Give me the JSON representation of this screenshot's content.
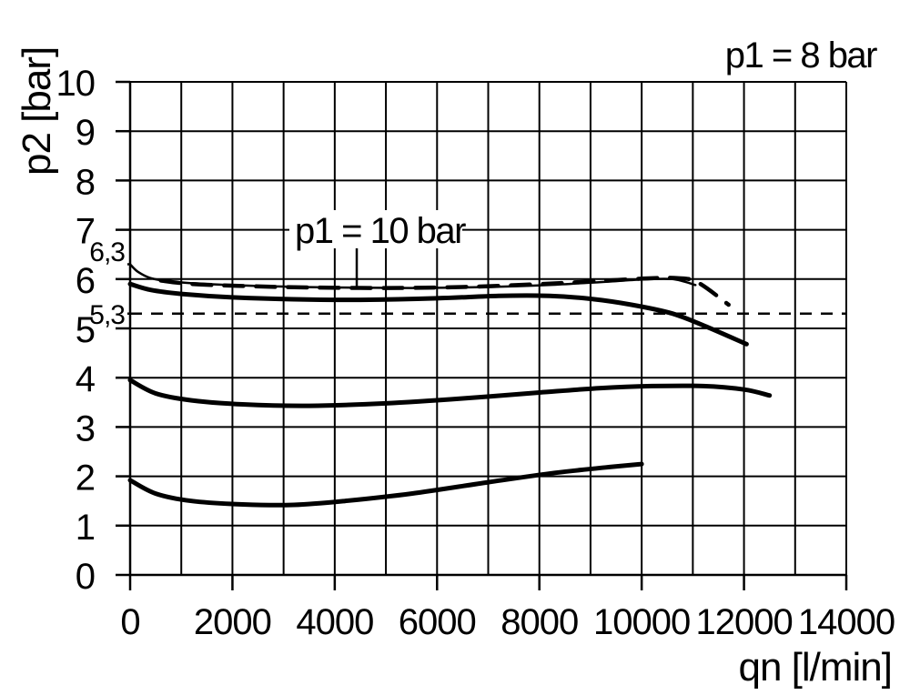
{
  "page": {
    "background": "#ffffff",
    "foreground": "#000000"
  },
  "chart_data": {
    "type": "line",
    "title": "",
    "xlabel": "qn [l/min]",
    "ylabel": "p2 [bar]",
    "xlim": [
      0,
      14000
    ],
    "ylim": [
      0,
      10
    ],
    "grid": {
      "shown": true,
      "x_step": 1000,
      "y_step": 1
    },
    "legend": "none",
    "x_ticks": {
      "step": 2000,
      "labels": [
        "0",
        "2000",
        "4000",
        "6000",
        "8000",
        "10000",
        "12000",
        "14000"
      ]
    },
    "y_ticks": {
      "step": 1,
      "labels": [
        "0",
        "1",
        "2",
        "3",
        "4",
        "5",
        "6",
        "7",
        "8",
        "9",
        "10"
      ]
    },
    "extra_y_ticks": [
      {
        "value": 6.3,
        "label": "6,3"
      },
      {
        "value": 5.3,
        "label": "5,3"
      }
    ],
    "reference_lines": [
      {
        "y": 5.3,
        "style": "dashed",
        "x_from": 0,
        "x_to": 14000
      }
    ],
    "annotations": [
      {
        "id": "p1-8bar",
        "text": "p1 = 8 bar",
        "position": "top-right-above-plot"
      },
      {
        "id": "p1-10bar",
        "text": "p1 = 10 bar",
        "position": "inside-plot",
        "leader_points_to": {
          "qn": 4430,
          "p2": 5.82
        }
      }
    ],
    "series": [
      {
        "name": "p1 = 10 bar characteristic (dashed)",
        "style": "dashed",
        "stroke_width": 4.5,
        "color": "#000000",
        "points": [
          [
            600,
            5.97
          ],
          [
            1200,
            5.9
          ],
          [
            2200,
            5.86
          ],
          [
            3500,
            5.83
          ],
          [
            5000,
            5.82
          ],
          [
            6500,
            5.84
          ],
          [
            7800,
            5.89
          ],
          [
            9000,
            5.95
          ],
          [
            10000,
            6.01
          ],
          [
            10700,
            6.02
          ],
          [
            11100,
            5.93
          ],
          [
            11700,
            5.48
          ]
        ]
      },
      {
        "name": "upper thin curve starting at 6.3 bar",
        "style": "solid",
        "stroke_width": 2.5,
        "color": "#000000",
        "points": [
          [
            0,
            6.3
          ],
          [
            150,
            6.15
          ],
          [
            400,
            6.02
          ],
          [
            800,
            5.95
          ],
          [
            1500,
            5.9
          ],
          [
            2500,
            5.86
          ],
          [
            4000,
            5.83
          ],
          [
            5500,
            5.82
          ],
          [
            7000,
            5.84
          ],
          [
            8200,
            5.88
          ],
          [
            9200,
            5.94
          ],
          [
            10000,
            5.99
          ],
          [
            10600,
            6.0
          ],
          [
            11050,
            5.88
          ]
        ]
      },
      {
        "name": "p1 = 8 bar characteristic (set ~5.7 bar)",
        "style": "solid",
        "stroke_width": 5,
        "color": "#000000",
        "points": [
          [
            0,
            5.9
          ],
          [
            400,
            5.78
          ],
          [
            1000,
            5.7
          ],
          [
            2000,
            5.63
          ],
          [
            3200,
            5.59
          ],
          [
            4500,
            5.58
          ],
          [
            6000,
            5.61
          ],
          [
            7200,
            5.66
          ],
          [
            8200,
            5.66
          ],
          [
            9000,
            5.6
          ],
          [
            9800,
            5.48
          ],
          [
            10600,
            5.3
          ],
          [
            11300,
            5.02
          ],
          [
            12050,
            4.68
          ]
        ]
      },
      {
        "name": "characteristic set ~3.5 bar",
        "style": "solid",
        "stroke_width": 5,
        "color": "#000000",
        "points": [
          [
            0,
            3.95
          ],
          [
            500,
            3.68
          ],
          [
            1200,
            3.54
          ],
          [
            2200,
            3.46
          ],
          [
            3500,
            3.43
          ],
          [
            5000,
            3.48
          ],
          [
            6500,
            3.58
          ],
          [
            8000,
            3.7
          ],
          [
            9200,
            3.79
          ],
          [
            10200,
            3.83
          ],
          [
            11200,
            3.83
          ],
          [
            12000,
            3.76
          ],
          [
            12500,
            3.64
          ]
        ]
      },
      {
        "name": "characteristic set ~1.5 bar",
        "style": "solid",
        "stroke_width": 5,
        "color": "#000000",
        "points": [
          [
            0,
            1.92
          ],
          [
            500,
            1.65
          ],
          [
            1200,
            1.5
          ],
          [
            2200,
            1.43
          ],
          [
            3200,
            1.42
          ],
          [
            4200,
            1.5
          ],
          [
            5500,
            1.65
          ],
          [
            7000,
            1.88
          ],
          [
            8300,
            2.07
          ],
          [
            9300,
            2.18
          ],
          [
            10000,
            2.25
          ]
        ]
      }
    ]
  }
}
